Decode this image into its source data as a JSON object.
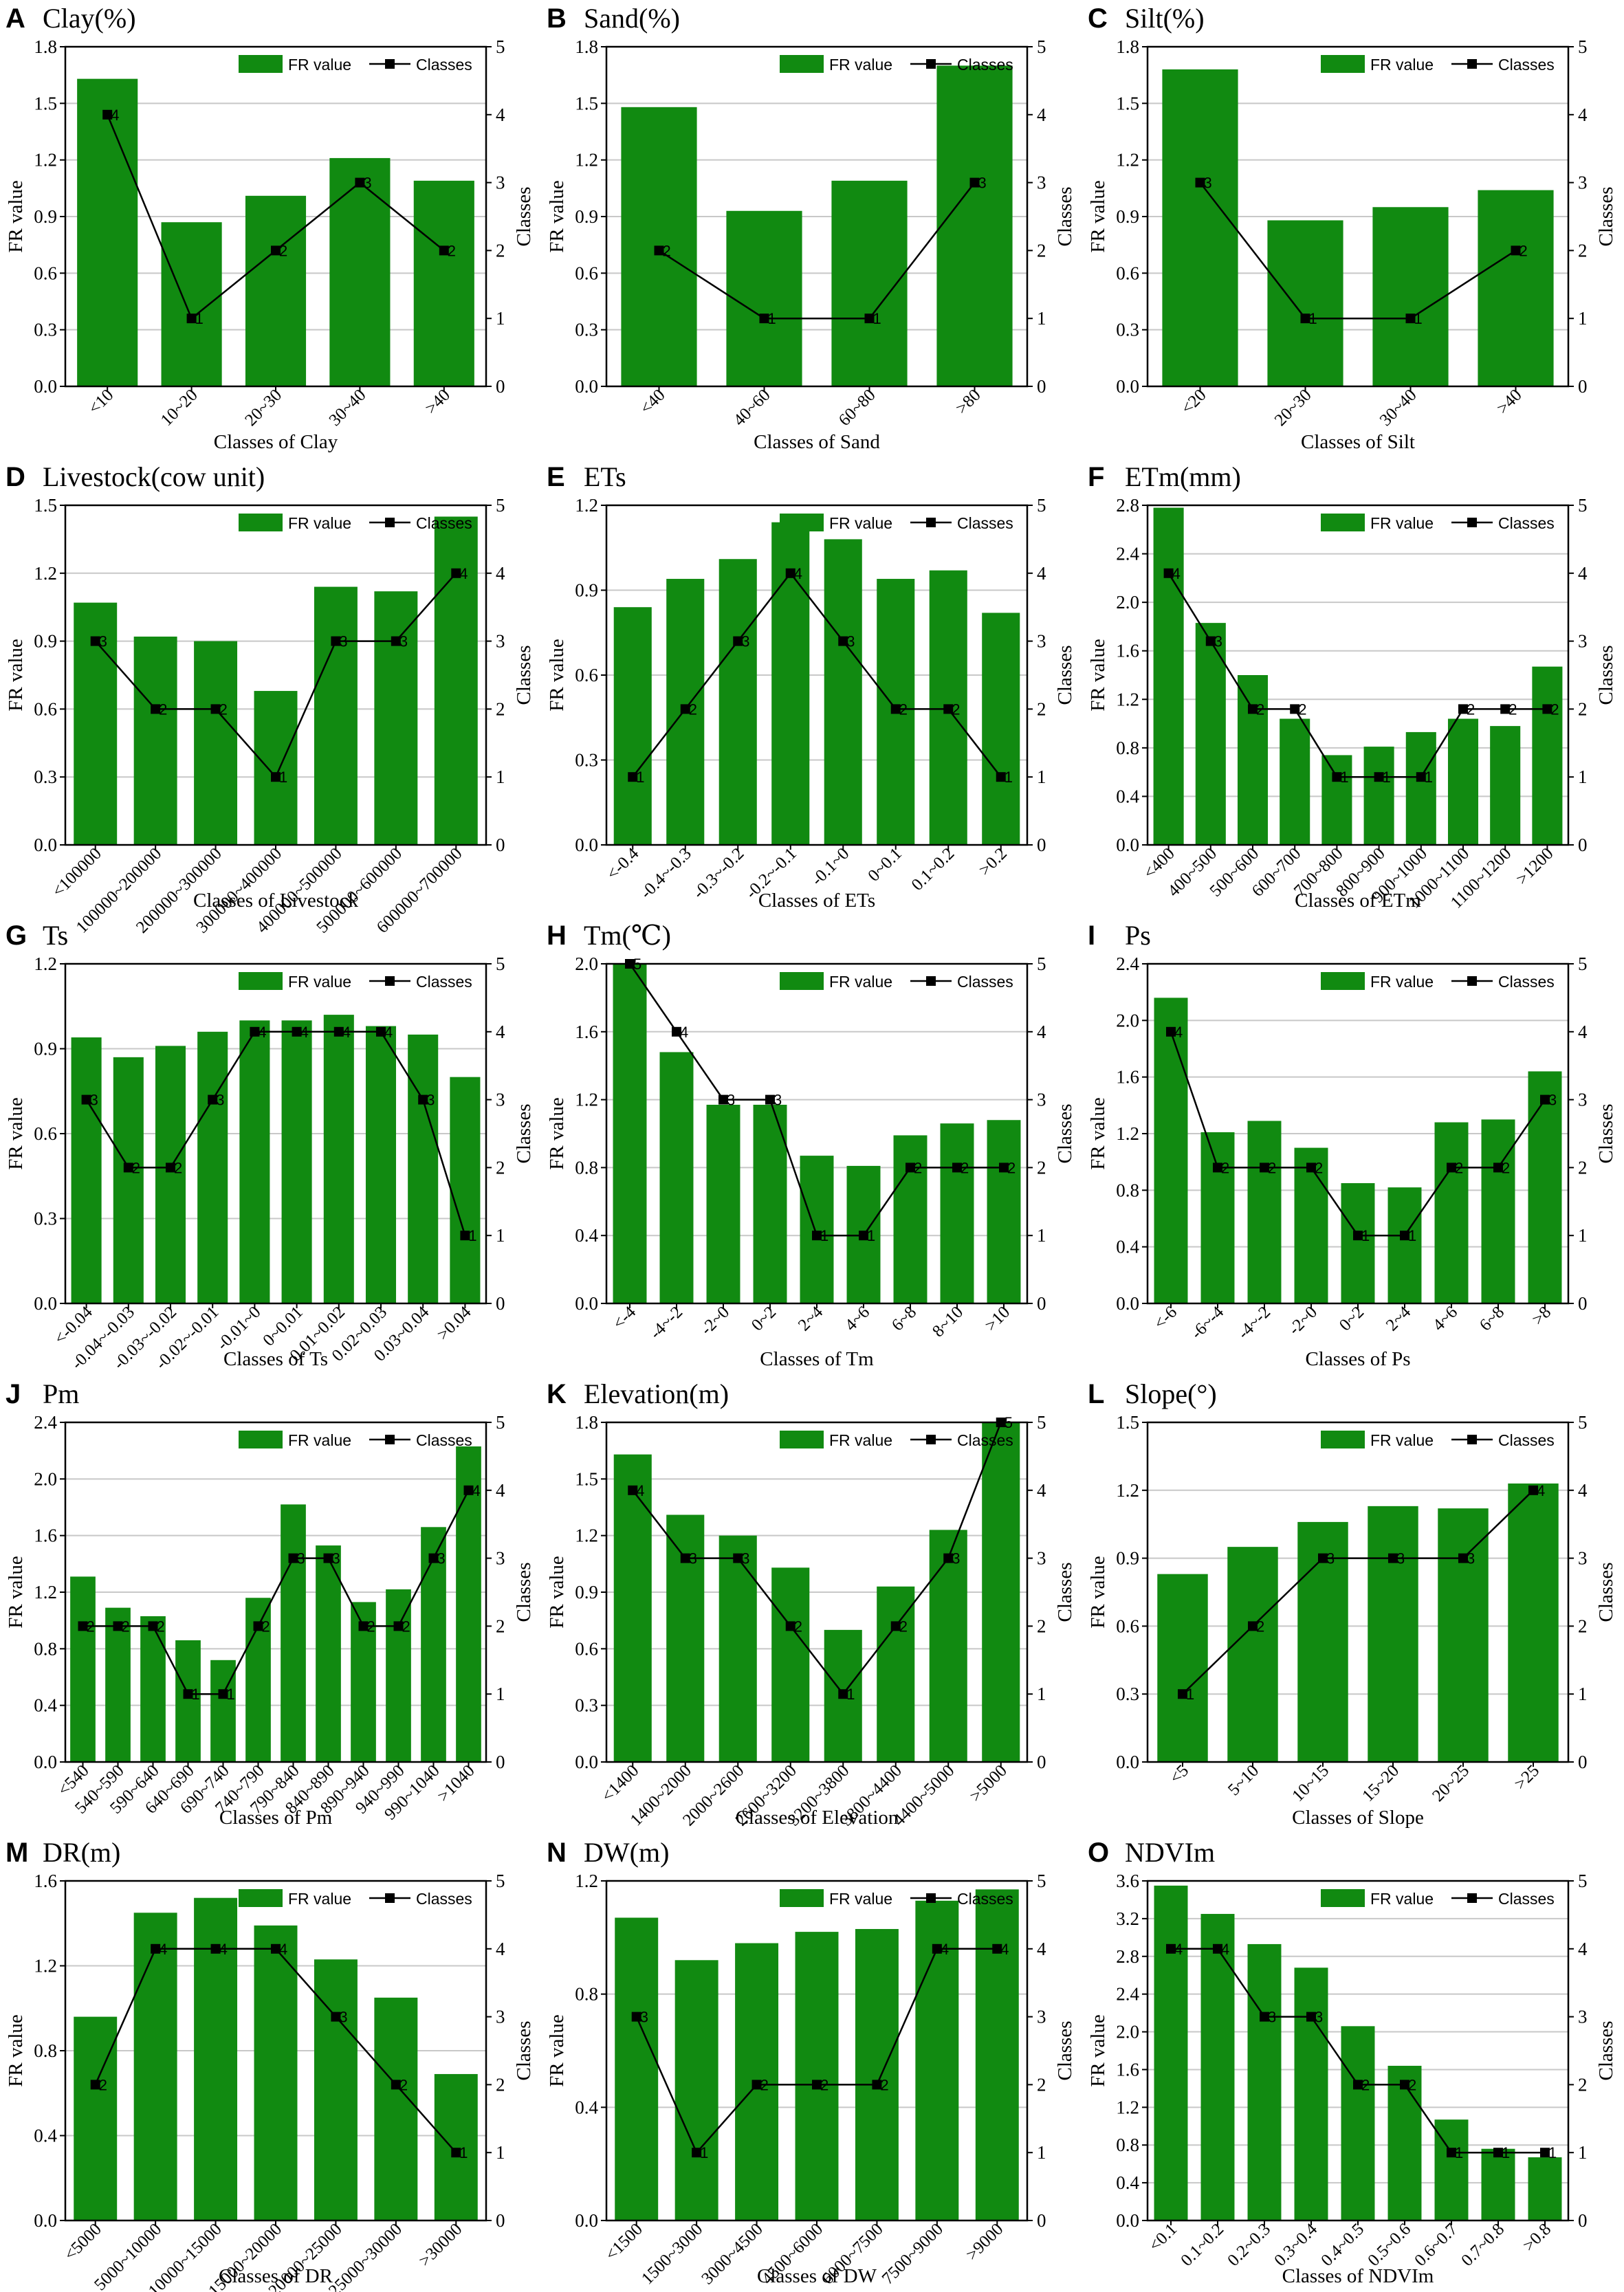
{
  "figure": {
    "bar_color": "#118a11",
    "line_color": "#000000",
    "legend_fr": "FR value",
    "legend_classes": "Classes",
    "left_axis_label": "FR value",
    "right_axis_label": "Classes"
  },
  "chart_data": [
    {
      "id": "A",
      "type": "bar",
      "title": "Clay(%)",
      "xlabel": "Classes of Clay",
      "ylabel": "FR value",
      "y2label": "Classes",
      "categories": [
        "<10",
        "10~20",
        "20~30",
        "30~40",
        ">40"
      ],
      "series": [
        {
          "name": "FR value",
          "values": [
            1.63,
            0.87,
            1.01,
            1.21,
            1.09
          ]
        },
        {
          "name": "Classes",
          "values": [
            4,
            1,
            2,
            3,
            2
          ]
        }
      ],
      "ylim": [
        0,
        1.8
      ],
      "yticks": [
        0,
        0.3,
        0.6,
        0.9,
        1.2,
        1.5,
        1.8
      ],
      "y2lim": [
        0,
        5
      ],
      "grid": "horizontal",
      "legend": "top-right"
    },
    {
      "id": "B",
      "type": "bar",
      "title": "Sand(%)",
      "xlabel": "Classes of Sand",
      "ylabel": "FR value",
      "y2label": "Classes",
      "categories": [
        "<40",
        "40~60",
        "60~80",
        ">80"
      ],
      "series": [
        {
          "name": "FR value",
          "values": [
            1.48,
            0.93,
            1.09,
            1.7
          ]
        },
        {
          "name": "Classes",
          "values": [
            2,
            1,
            1,
            3
          ]
        }
      ],
      "ylim": [
        0,
        1.8
      ],
      "yticks": [
        0,
        0.3,
        0.6,
        0.9,
        1.2,
        1.5,
        1.8
      ],
      "y2lim": [
        0,
        5
      ],
      "grid": "horizontal",
      "legend": "top-right"
    },
    {
      "id": "C",
      "type": "bar",
      "title": "Silt(%)",
      "xlabel": "Classes of Silt",
      "ylabel": "FR value",
      "y2label": "Classes",
      "categories": [
        "<20",
        "20~30",
        "30~40",
        ">40"
      ],
      "series": [
        {
          "name": "FR value",
          "values": [
            1.68,
            0.88,
            0.95,
            1.04
          ]
        },
        {
          "name": "Classes",
          "values": [
            3,
            1,
            1,
            2
          ]
        }
      ],
      "ylim": [
        0,
        1.8
      ],
      "yticks": [
        0,
        0.3,
        0.6,
        0.9,
        1.2,
        1.5,
        1.8
      ],
      "y2lim": [
        0,
        5
      ],
      "grid": "horizontal",
      "legend": "top-right"
    },
    {
      "id": "D",
      "type": "bar",
      "title": "Livestock(cow unit)",
      "xlabel": "Classes of Livestock",
      "ylabel": "FR value",
      "y2label": "Classes",
      "categories": [
        "<100000",
        "100000~200000",
        "200000~300000",
        "300000~400000",
        "400000~500000",
        "500000~600000",
        "600000~700000"
      ],
      "series": [
        {
          "name": "FR value",
          "values": [
            1.07,
            0.92,
            0.9,
            0.68,
            1.14,
            1.12,
            1.45
          ]
        },
        {
          "name": "Classes",
          "values": [
            3,
            2,
            2,
            1,
            3,
            3,
            4
          ]
        }
      ],
      "ylim": [
        0,
        1.5
      ],
      "yticks": [
        0,
        0.3,
        0.6,
        0.9,
        1.2,
        1.5
      ],
      "y2lim": [
        0,
        5
      ],
      "grid": "horizontal",
      "legend": "top-right"
    },
    {
      "id": "E",
      "type": "bar",
      "title": "ETs",
      "xlabel": "Classes of ETs",
      "ylabel": "FR value",
      "y2label": "Classes",
      "categories": [
        "<-0.4",
        "-0.4~-0.3",
        "-0.3~-0.2",
        "-0.2~-0.1",
        "-0.1~0",
        "0~0.1",
        "0.1~0.2",
        ">0.2"
      ],
      "series": [
        {
          "name": "FR value",
          "values": [
            0.84,
            0.94,
            1.01,
            1.14,
            1.08,
            0.94,
            0.97,
            0.82
          ]
        },
        {
          "name": "Classes",
          "values": [
            1,
            2,
            3,
            4,
            3,
            2,
            2,
            1
          ]
        }
      ],
      "ylim": [
        0,
        1.2
      ],
      "yticks": [
        0,
        0.3,
        0.6,
        0.9,
        1.2
      ],
      "y2lim": [
        0,
        5
      ],
      "grid": "horizontal",
      "legend": "top-right"
    },
    {
      "id": "F",
      "type": "bar",
      "title": "ETm(mm)",
      "xlabel": "Classes of ETm",
      "ylabel": "FR value",
      "y2label": "Classes",
      "categories": [
        "<400",
        "400~500",
        "500~600",
        "600~700",
        "700~800",
        "800~900",
        "900~1000",
        "1000~1100",
        "1100~1200",
        ">1200"
      ],
      "series": [
        {
          "name": "FR value",
          "values": [
            2.78,
            1.83,
            1.4,
            1.04,
            0.74,
            0.81,
            0.93,
            1.04,
            0.98,
            1.47
          ]
        },
        {
          "name": "Classes",
          "values": [
            4,
            3,
            2,
            2,
            1,
            1,
            1,
            2,
            2,
            2
          ]
        }
      ],
      "ylim": [
        0,
        2.8
      ],
      "yticks": [
        0,
        0.4,
        0.8,
        1.2,
        1.6,
        2.0,
        2.4,
        2.8
      ],
      "y2lim": [
        0,
        5
      ],
      "grid": "horizontal",
      "legend": "top-right"
    },
    {
      "id": "G",
      "type": "bar",
      "title": "Ts",
      "xlabel": "Classes of Ts",
      "ylabel": "FR value",
      "y2label": "Classes",
      "categories": [
        "<-0.04",
        "-0.04~-0.03",
        "-0.03~-0.02",
        "-0.02~-0.01",
        "-0.01~0",
        "0~0.01",
        "0.01~0.02",
        "0.02~0.03",
        "0.03~0.04",
        ">0.04"
      ],
      "series": [
        {
          "name": "FR value",
          "values": [
            0.94,
            0.87,
            0.91,
            0.96,
            1.0,
            1.0,
            1.02,
            0.98,
            0.95,
            0.8
          ]
        },
        {
          "name": "Classes",
          "values": [
            3,
            2,
            2,
            3,
            4,
            4,
            4,
            4,
            3,
            1
          ]
        }
      ],
      "ylim": [
        0,
        1.2
      ],
      "yticks": [
        0,
        0.3,
        0.6,
        0.9,
        1.2
      ],
      "y2lim": [
        0,
        5
      ],
      "grid": "horizontal",
      "legend": "top-right"
    },
    {
      "id": "H",
      "type": "bar",
      "title": "Tm(℃)",
      "xlabel": "Classes of Tm",
      "ylabel": "FR value",
      "y2label": "Classes",
      "categories": [
        "<-4",
        "-4~-2",
        "-2~0",
        "0~2",
        "2~4",
        "4~6",
        "6~8",
        "8~10",
        ">10"
      ],
      "series": [
        {
          "name": "FR value",
          "values": [
            2.0,
            1.48,
            1.17,
            1.17,
            0.87,
            0.81,
            0.99,
            1.06,
            1.08
          ]
        },
        {
          "name": "Classes",
          "values": [
            5,
            4,
            3,
            3,
            1,
            1,
            2,
            2,
            2
          ]
        }
      ],
      "ylim": [
        0,
        2.0
      ],
      "yticks": [
        0,
        0.4,
        0.8,
        1.2,
        1.6,
        2.0
      ],
      "y2lim": [
        0,
        5
      ],
      "grid": "horizontal",
      "legend": "top-right"
    },
    {
      "id": "I",
      "type": "bar",
      "title": "Ps",
      "xlabel": "Classes of Ps",
      "ylabel": "FR value",
      "y2label": "Classes",
      "categories": [
        "<-6",
        "-6~-4",
        "-4~-2",
        "-2~0",
        "0~2",
        "2~4",
        "4~6",
        "6~8",
        ">8"
      ],
      "series": [
        {
          "name": "FR value",
          "values": [
            2.16,
            1.21,
            1.29,
            1.1,
            0.85,
            0.82,
            1.28,
            1.3,
            1.64
          ]
        },
        {
          "name": "Classes",
          "values": [
            4,
            2,
            2,
            2,
            1,
            1,
            2,
            2,
            3
          ]
        }
      ],
      "ylim": [
        0,
        2.4
      ],
      "yticks": [
        0,
        0.4,
        0.8,
        1.2,
        1.6,
        2.0,
        2.4
      ],
      "y2lim": [
        0,
        5
      ],
      "grid": "horizontal",
      "legend": "top-right"
    },
    {
      "id": "J",
      "type": "bar",
      "title": "Pm",
      "xlabel": "Classes of Pm",
      "ylabel": "FR value",
      "y2label": "Classes",
      "categories": [
        "<540",
        "540~590",
        "590~640",
        "640~690",
        "690~740",
        "740~790",
        "790~840",
        "840~890",
        "890~940",
        "940~990",
        "990~1040",
        ">1040"
      ],
      "series": [
        {
          "name": "FR value",
          "values": [
            1.31,
            1.09,
            1.03,
            0.86,
            0.72,
            1.16,
            1.82,
            1.53,
            1.13,
            1.22,
            1.66,
            2.23
          ]
        },
        {
          "name": "Classes",
          "values": [
            2,
            2,
            2,
            1,
            1,
            2,
            3,
            3,
            2,
            2,
            3,
            4
          ]
        }
      ],
      "ylim": [
        0,
        2.4
      ],
      "yticks": [
        0,
        0.4,
        0.8,
        1.2,
        1.6,
        2.0,
        2.4
      ],
      "y2lim": [
        0,
        5
      ],
      "grid": "horizontal",
      "legend": "top-right"
    },
    {
      "id": "K",
      "type": "bar",
      "title": "Elevation(m)",
      "xlabel": "Classes of Elevation",
      "ylabel": "FR value",
      "y2label": "Classes",
      "categories": [
        "<1400",
        "1400~2000",
        "2000~2600",
        "2600~3200",
        "3200~3800",
        "3800~4400",
        "4400~5000",
        ">5000"
      ],
      "series": [
        {
          "name": "FR value",
          "values": [
            1.63,
            1.31,
            1.2,
            1.03,
            0.7,
            0.93,
            1.23,
            1.8
          ]
        },
        {
          "name": "Classes",
          "values": [
            4,
            3,
            3,
            2,
            1,
            2,
            3,
            5
          ]
        }
      ],
      "ylim": [
        0,
        1.8
      ],
      "yticks": [
        0,
        0.3,
        0.6,
        0.9,
        1.2,
        1.5,
        1.8
      ],
      "y2lim": [
        0,
        5
      ],
      "grid": "horizontal",
      "legend": "top-right"
    },
    {
      "id": "L",
      "type": "bar",
      "title": "Slope(°)",
      "xlabel": "Classes of Slope",
      "ylabel": "FR value",
      "y2label": "Classes",
      "categories": [
        "<5",
        "5~10",
        "10~15",
        "15~20",
        "20~25",
        ">25"
      ],
      "series": [
        {
          "name": "FR value",
          "values": [
            0.83,
            0.95,
            1.06,
            1.13,
            1.12,
            1.23
          ]
        },
        {
          "name": "Classes",
          "values": [
            1,
            2,
            3,
            3,
            3,
            4
          ]
        }
      ],
      "ylim": [
        0,
        1.5
      ],
      "yticks": [
        0,
        0.3,
        0.6,
        0.9,
        1.2,
        1.5
      ],
      "y2lim": [
        0,
        5
      ],
      "grid": "horizontal",
      "legend": "top-right"
    },
    {
      "id": "M",
      "type": "bar",
      "title": "DR(m)",
      "xlabel": "Classes of DR",
      "ylabel": "FR value",
      "y2label": "Classes",
      "categories": [
        "<5000",
        "5000~10000",
        "10000~15000",
        "15000~20000",
        "20000~25000",
        "25000~30000",
        ">30000"
      ],
      "series": [
        {
          "name": "FR value",
          "values": [
            0.96,
            1.45,
            1.52,
            1.39,
            1.23,
            1.05,
            0.69
          ]
        },
        {
          "name": "Classes",
          "values": [
            2,
            4,
            4,
            4,
            3,
            2,
            1
          ]
        }
      ],
      "ylim": [
        0,
        1.6
      ],
      "yticks": [
        0,
        0.4,
        0.8,
        1.2,
        1.6
      ],
      "y2lim": [
        0,
        5
      ],
      "grid": "horizontal",
      "legend": "top-right"
    },
    {
      "id": "N",
      "type": "bar",
      "title": "DW(m)",
      "xlabel": "Classes of DW",
      "ylabel": "FR value",
      "y2label": "Classes",
      "categories": [
        "<1500",
        "1500~3000",
        "3000~4500",
        "4500~6000",
        "6000~7500",
        "7500~9000",
        ">9000"
      ],
      "series": [
        {
          "name": "FR value",
          "values": [
            1.07,
            0.92,
            0.98,
            1.02,
            1.03,
            1.13,
            1.17
          ]
        },
        {
          "name": "Classes",
          "values": [
            3,
            1,
            2,
            2,
            2,
            4,
            4
          ]
        }
      ],
      "ylim": [
        0,
        1.2
      ],
      "yticks": [
        0,
        0.4,
        0.8,
        1.2
      ],
      "y2lim": [
        0,
        5
      ],
      "grid": "horizontal",
      "legend": "top-right"
    },
    {
      "id": "O",
      "type": "bar",
      "title": "NDVIm",
      "xlabel": "Classes of NDVIm",
      "ylabel": "FR value",
      "y2label": "Classes",
      "categories": [
        "<0.1",
        "0.1~0.2",
        "0.2~0.3",
        "0.3~0.4",
        "0.4~0.5",
        "0.5~0.6",
        "0.6~0.7",
        "0.7~0.8",
        ">0.8"
      ],
      "series": [
        {
          "name": "FR value",
          "values": [
            3.55,
            3.25,
            2.93,
            2.68,
            2.06,
            1.64,
            1.07,
            0.76,
            0.67
          ]
        },
        {
          "name": "Classes",
          "values": [
            4,
            4,
            3,
            3,
            2,
            2,
            1,
            1,
            1
          ]
        }
      ],
      "ylim": [
        0,
        3.6
      ],
      "yticks": [
        0,
        0.4,
        0.8,
        1.2,
        1.6,
        2.0,
        2.4,
        2.8,
        3.2,
        3.6
      ],
      "y2lim": [
        0,
        5
      ],
      "grid": "horizontal",
      "legend": "top-right"
    }
  ]
}
